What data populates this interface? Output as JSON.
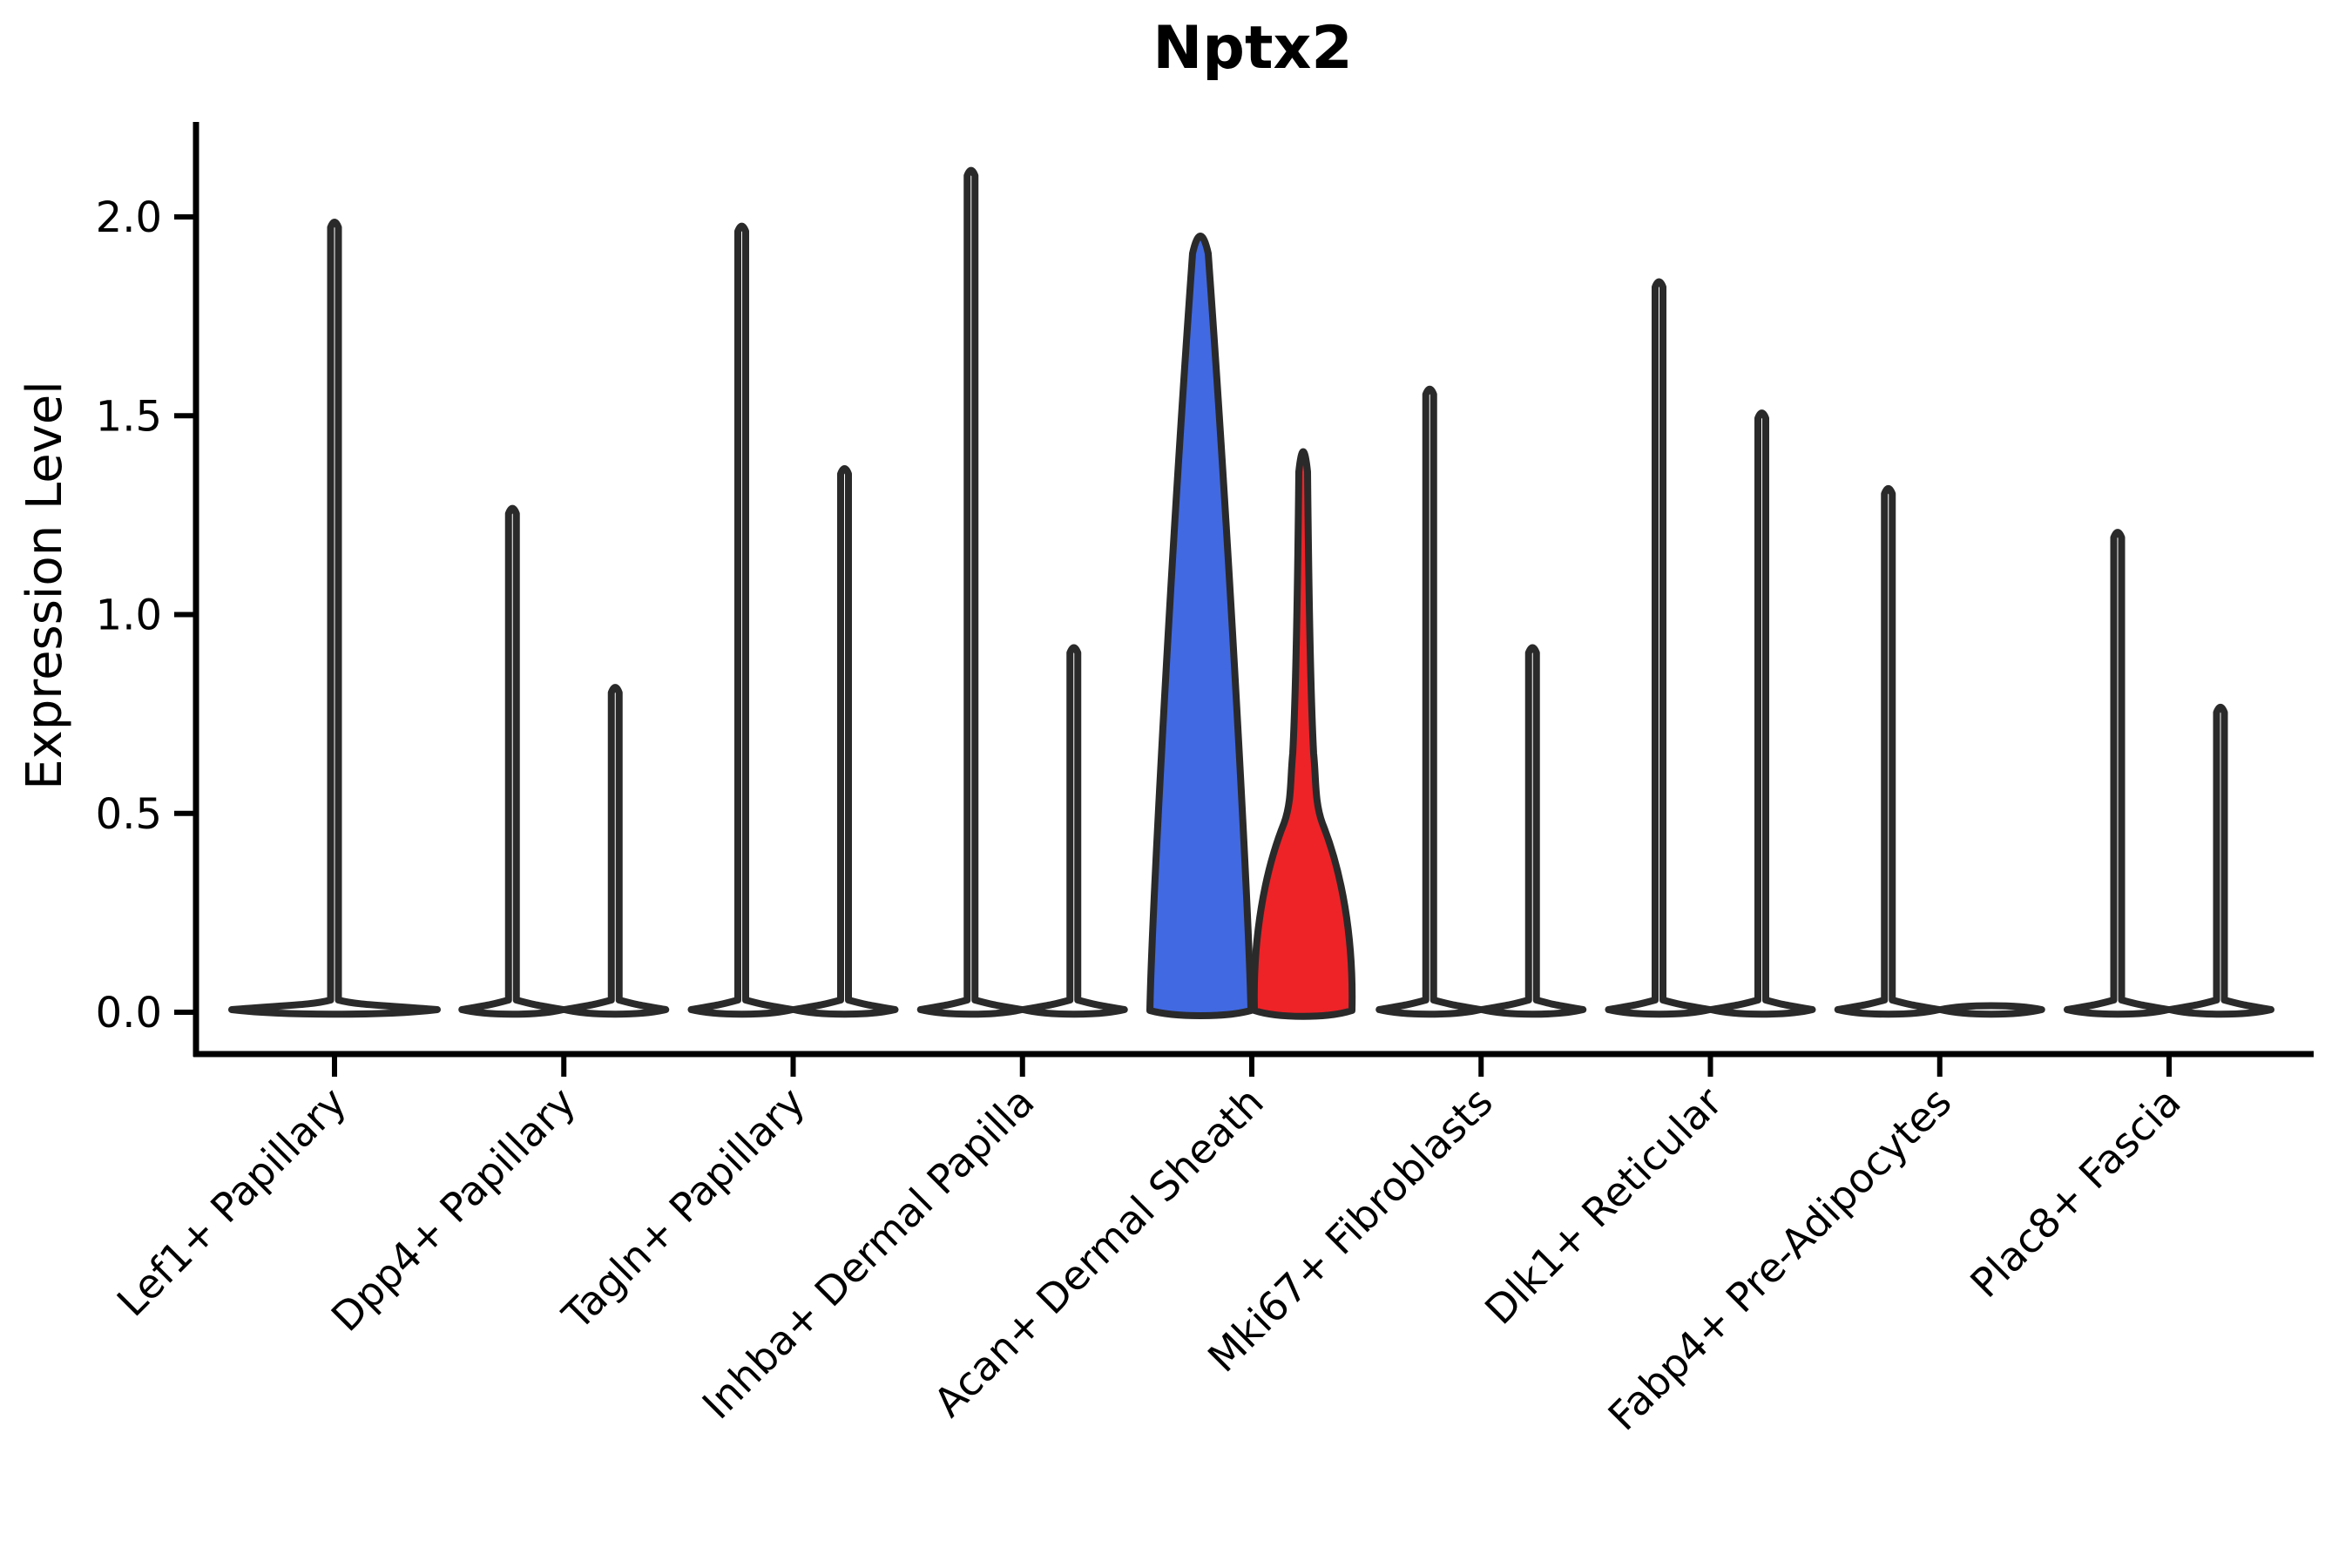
{
  "chart_data": {
    "type": "violin",
    "title": "Nptx2",
    "xlabel": "",
    "ylabel": "Expression Level",
    "yticks": [
      "0.0",
      "0.5",
      "1.0",
      "1.5",
      "2.0"
    ],
    "ylim": [
      -0.105,
      2.24
    ],
    "grid": false,
    "legend": "none",
    "outline_color": "#2a2a2a",
    "axis_color": "#000000",
    "highlight_colors": {
      "blue": "#4169E1",
      "red": "#ED2328"
    },
    "categories": [
      "Lef1+ Papillary",
      "Dpp4+ Papillary",
      "Tagln+ Papillary",
      "Inhba+ Dermal Papilla",
      "Acan+ Dermal Sheath",
      "Mki67+ Fibroblasts",
      "Dlk1+ Reticular",
      "Fabp4+ Pre-Adipocytes",
      "Plac8+ Fascia"
    ],
    "series": [
      {
        "category": "Lef1+ Papillary",
        "violins": [
          {
            "position": "center",
            "shape": "spike",
            "fill": "#ffffff",
            "max": 2.0
          }
        ]
      },
      {
        "category": "Dpp4+ Papillary",
        "violins": [
          {
            "position": "left",
            "shape": "spike",
            "fill": "#ffffff",
            "max": 1.28
          },
          {
            "position": "right",
            "shape": "spike",
            "fill": "#ffffff",
            "max": 0.83
          }
        ]
      },
      {
        "category": "Tagln+ Papillary",
        "violins": [
          {
            "position": "left",
            "shape": "spike",
            "fill": "#ffffff",
            "max": 1.99
          },
          {
            "position": "right",
            "shape": "spike",
            "fill": "#ffffff",
            "max": 1.38
          }
        ]
      },
      {
        "category": "Inhba+ Dermal Papilla",
        "violins": [
          {
            "position": "left",
            "shape": "spike",
            "fill": "#ffffff",
            "max": 2.13
          },
          {
            "position": "right",
            "shape": "spike",
            "fill": "#ffffff",
            "max": 0.93
          }
        ]
      },
      {
        "category": "Acan+ Dermal Sheath",
        "violins": [
          {
            "position": "left",
            "shape": "wedge",
            "fill": "#4169E1",
            "max": 2.0
          },
          {
            "position": "right",
            "shape": "bulge",
            "fill": "#ED2328",
            "max": 1.46
          }
        ]
      },
      {
        "category": "Mki67+ Fibroblasts",
        "violins": [
          {
            "position": "left",
            "shape": "spike",
            "fill": "#ffffff",
            "max": 1.58
          },
          {
            "position": "right",
            "shape": "spike",
            "fill": "#ffffff",
            "max": 0.93
          }
        ]
      },
      {
        "category": "Dlk1+ Reticular",
        "violins": [
          {
            "position": "left",
            "shape": "spike",
            "fill": "#ffffff",
            "max": 1.85
          },
          {
            "position": "right",
            "shape": "spike",
            "fill": "#ffffff",
            "max": 1.52
          }
        ]
      },
      {
        "category": "Fabp4+ Pre-Adipocytes",
        "violins": [
          {
            "position": "left",
            "shape": "spike",
            "fill": "#ffffff",
            "max": 1.33
          },
          {
            "position": "right",
            "shape": "flat",
            "fill": "#ffffff",
            "max": 0.0
          }
        ]
      },
      {
        "category": "Plac8+ Fascia",
        "violins": [
          {
            "position": "left",
            "shape": "spike",
            "fill": "#ffffff",
            "max": 1.22
          },
          {
            "position": "right",
            "shape": "spike",
            "fill": "#ffffff",
            "max": 0.78
          }
        ]
      }
    ]
  }
}
